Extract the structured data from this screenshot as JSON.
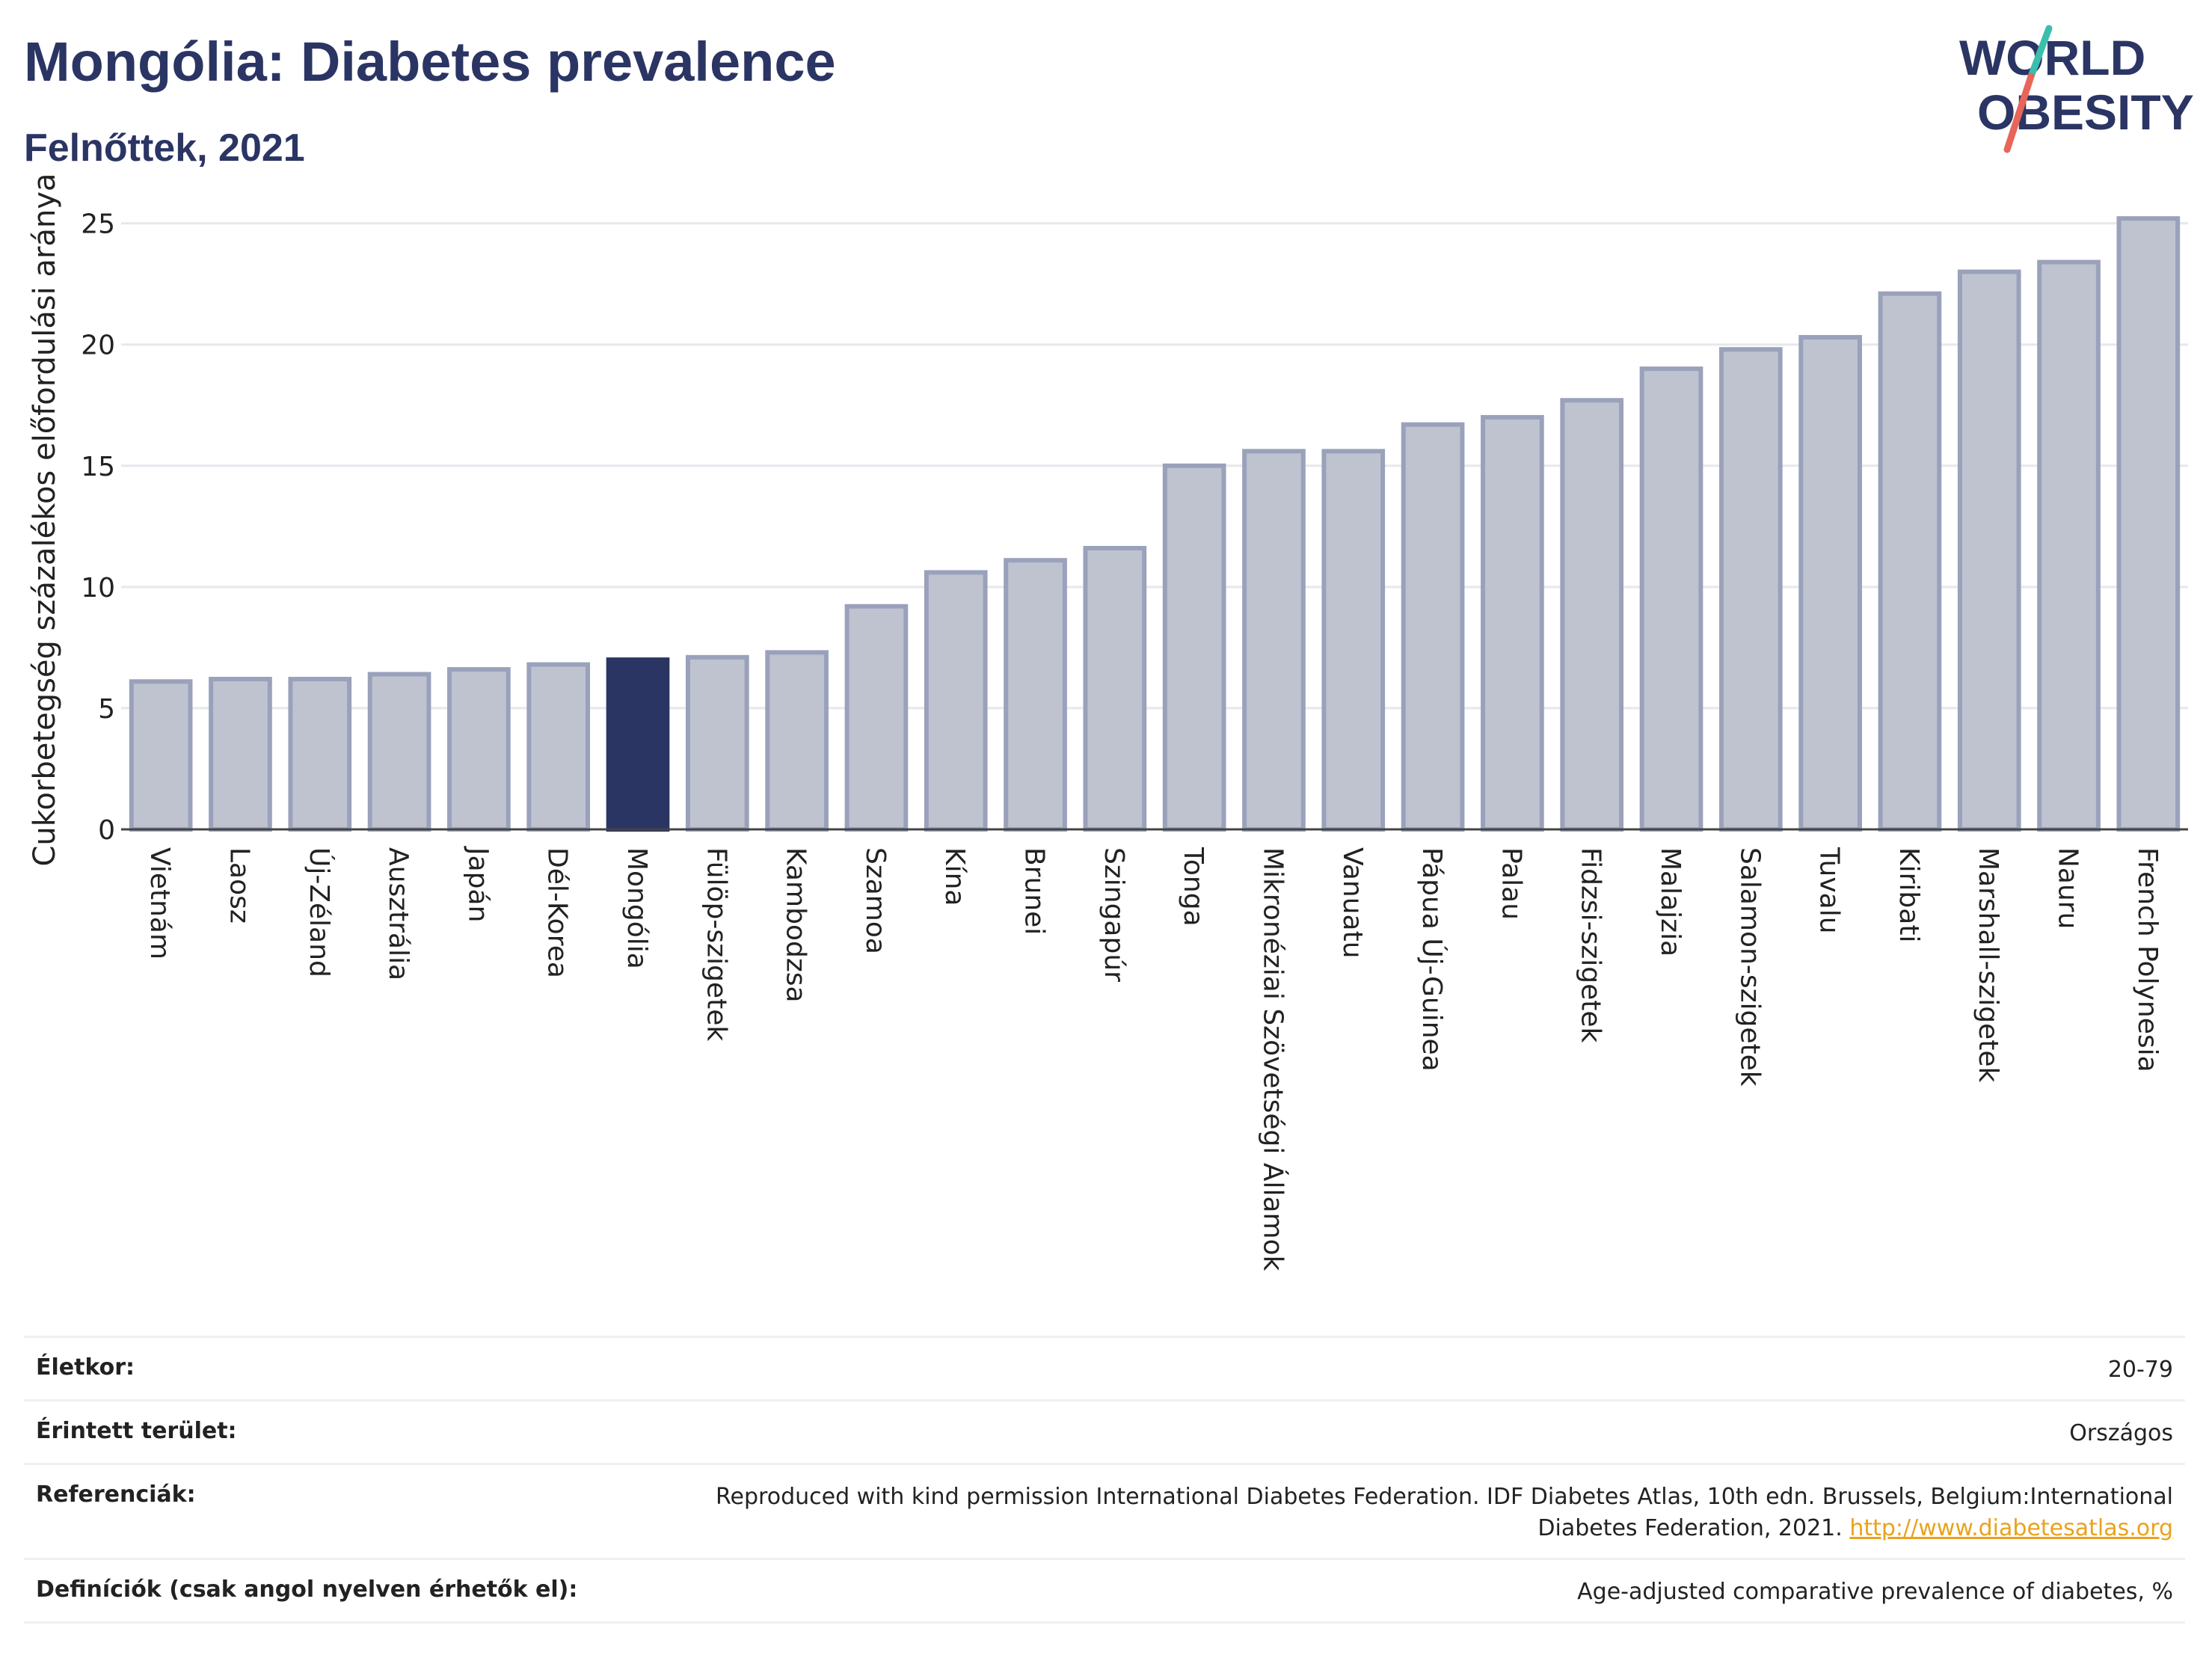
{
  "title": "Mongólia: Diabetes prevalence",
  "subtitle": "Felnőttek, 2021",
  "logo": {
    "line1": "WORLD",
    "line2": "OBESITY"
  },
  "colors": {
    "highlight": "#2b3564",
    "bar": "#bfc3d0",
    "bar_edge": "#9aa1bb",
    "title": "#2b3564",
    "link": "#e8a31c"
  },
  "chart_data": {
    "type": "bar",
    "title": "Mongólia: Diabetes prevalence",
    "ylabel": "Cukorbetegség százalékos előfordulási aránya",
    "xlabel": "",
    "ylim": [
      0,
      26.5
    ],
    "yticks": [
      0,
      5,
      10,
      15,
      20,
      25
    ],
    "grid": true,
    "highlight": "Mongólia",
    "categories": [
      "Vietnám",
      "Laosz",
      "Új-Zéland",
      "Ausztrália",
      "Japán",
      "Dél-Korea",
      "Mongólia",
      "Fülöp-szigetek",
      "Kambodzsa",
      "Szamoa",
      "Kína",
      "Brunei",
      "Szingapúr",
      "Tonga",
      "Mikronéziai Szövetségi Államok",
      "Vanuatu",
      "Pápua Új-Guinea",
      "Palau",
      "Fidzsi-szigetek",
      "Malajzia",
      "Salamon-szigetek",
      "Tuvalu",
      "Kiribati",
      "Marshall-szigetek",
      "Nauru",
      "French Polynesia"
    ],
    "values": [
      6.1,
      6.2,
      6.2,
      6.4,
      6.6,
      6.8,
      7.0,
      7.1,
      7.3,
      9.2,
      10.6,
      11.1,
      11.6,
      15.0,
      15.6,
      15.6,
      16.7,
      17.0,
      17.7,
      19.0,
      19.8,
      20.3,
      22.1,
      23.0,
      23.4,
      25.2
    ]
  },
  "meta": {
    "age": {
      "label": "Életkor:",
      "value": "20-79"
    },
    "area": {
      "label": "Érintett terület:",
      "value": "Országos"
    },
    "refs": {
      "label": "Referenciák:",
      "value": "Reproduced with kind permission International Diabetes Federation.  IDF Diabetes Atlas, 10th edn. Brussels, Belgium:International Diabetes Federation, 2021. ",
      "link": "http://www.diabetesatlas.org"
    },
    "defs": {
      "label": "Definíciók (csak angol nyelven érhetők el):",
      "value": "Age-adjusted comparative prevalence of diabetes, %"
    }
  }
}
